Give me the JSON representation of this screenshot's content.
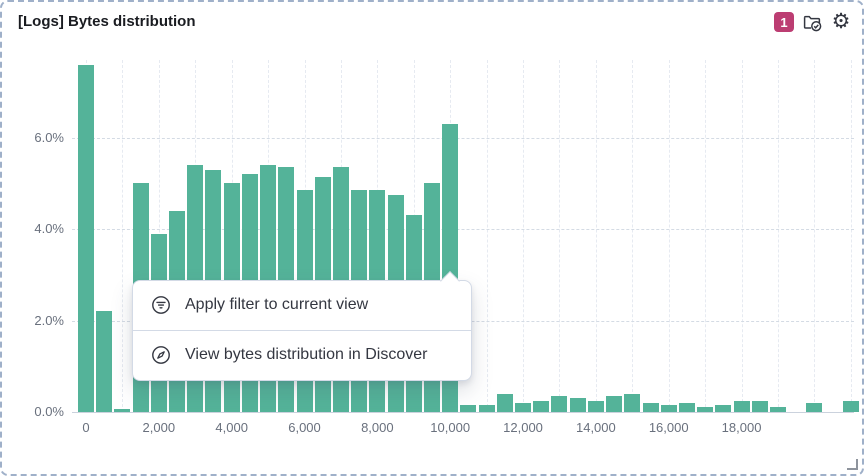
{
  "panel": {
    "title": "[Logs] Bytes distribution",
    "badge_count": "1",
    "colors": {
      "bar": "#54B399",
      "badge": "#BC3D72",
      "border": "#9FB0C9",
      "grid": "#D4DBE4",
      "axis_text": "#69707D",
      "text": "#343741"
    }
  },
  "context_menu": {
    "anchor_bin": 10000,
    "items": [
      {
        "icon": "filter-icon",
        "label": "Apply filter to current view"
      },
      {
        "icon": "compass-icon",
        "label": "View bytes distribution in Discover"
      }
    ]
  },
  "chart_data": {
    "type": "bar",
    "title": "[Logs] Bytes distribution",
    "xlabel": "",
    "ylabel": "",
    "bin_width": 500,
    "bar_color": "#54B399",
    "grid": true,
    "legend": false,
    "xlim": [
      -250,
      21250
    ],
    "ylim": [
      0,
      7.7
    ],
    "x": [
      0,
      500,
      1000,
      1500,
      2000,
      2500,
      3000,
      3500,
      4000,
      4500,
      5000,
      5500,
      6000,
      6500,
      7000,
      7500,
      8000,
      8500,
      9000,
      9500,
      10000,
      10500,
      11000,
      11500,
      12000,
      12500,
      13000,
      13500,
      14000,
      14500,
      15000,
      15500,
      16000,
      16500,
      17000,
      17500,
      18000,
      18500,
      19000,
      19500,
      20000,
      20500,
      21000
    ],
    "values": [
      7.6,
      2.2,
      0.07,
      5.0,
      3.9,
      4.4,
      5.4,
      5.3,
      5.0,
      5.2,
      5.4,
      5.35,
      4.85,
      5.15,
      5.35,
      4.85,
      4.85,
      4.75,
      4.3,
      5.0,
      6.3,
      0.15,
      0.15,
      0.4,
      0.2,
      0.25,
      0.35,
      0.3,
      0.25,
      0.35,
      0.4,
      0.2,
      0.15,
      0.2,
      0.1,
      0.15,
      0.25,
      0.25,
      0.1,
      0,
      0.2,
      0,
      0.25
    ],
    "xticks": [
      0,
      2000,
      4000,
      6000,
      8000,
      10000,
      12000,
      14000,
      16000,
      18000
    ],
    "xtick_labels": [
      "0",
      "2,000",
      "4,000",
      "6,000",
      "8,000",
      "10,000",
      "12,000",
      "14,000",
      "16,000",
      "18,000"
    ],
    "yticks": [
      0,
      2,
      4,
      6
    ],
    "ytick_labels": [
      "0.0%",
      "2.0%",
      "4.0%",
      "6.0%"
    ]
  }
}
